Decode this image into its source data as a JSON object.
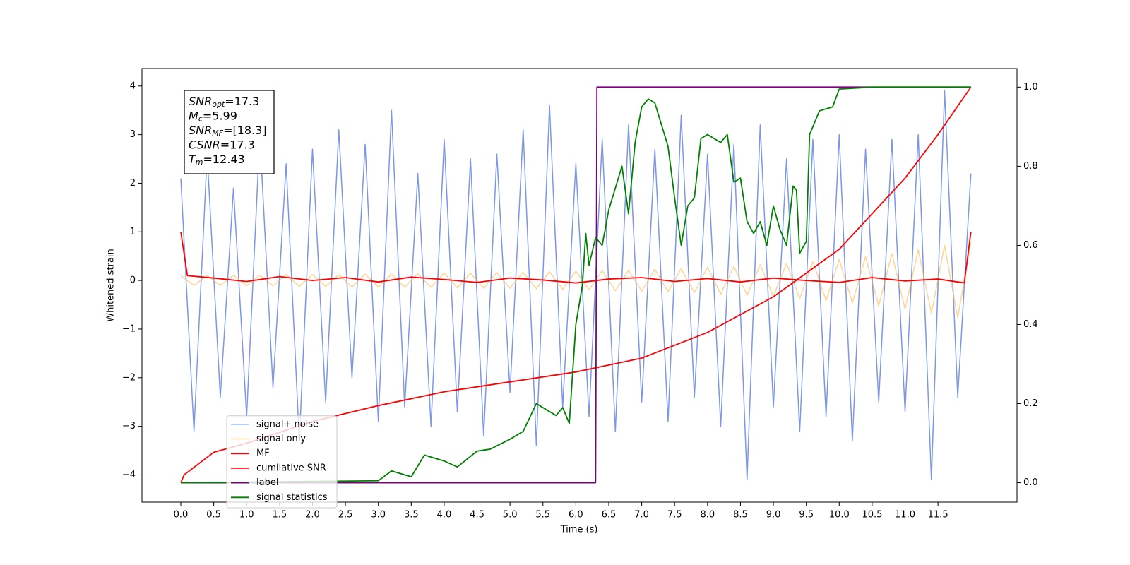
{
  "chart_data": {
    "type": "line",
    "x_label": "Time (s)",
    "y_label": "Whitened strain",
    "xlim": [
      -0.59,
      12.7
    ],
    "ylim": [
      -4.56,
      4.36
    ],
    "y2lim": [
      -0.049,
      1.047
    ],
    "xticks": [
      {
        "value": 0,
        "label": "0.0"
      },
      0.5,
      {
        "value": 1,
        "label": "1.0"
      },
      1.5,
      {
        "value": 2,
        "label": "2.0"
      },
      2.5,
      {
        "value": 3,
        "label": "3.0"
      },
      3.5,
      {
        "value": 4,
        "label": "4.0"
      },
      4.5,
      {
        "value": 5,
        "label": "5.0"
      },
      5.5,
      {
        "value": 6,
        "label": "6.0"
      },
      6.5,
      {
        "value": 7,
        "label": "7.0"
      },
      7.5,
      {
        "value": 8,
        "label": "8.0"
      },
      8.5,
      {
        "value": 9,
        "label": "9.0"
      },
      9.5,
      {
        "value": 10,
        "label": "10.0"
      },
      10.5,
      {
        "value": 11,
        "label": "11.0"
      },
      11.5
    ],
    "yticks": [
      {
        "value": -4,
        "label": "−4"
      },
      {
        "value": -3,
        "label": "−3"
      },
      {
        "value": -2,
        "label": "−2"
      },
      {
        "value": -1,
        "label": "−1"
      },
      0,
      1,
      2,
      3,
      4
    ],
    "y2ticks": [
      {
        "value": 0,
        "label": "0.0"
      },
      0.2,
      0.4,
      0.6,
      0.8,
      {
        "value": 1,
        "label": "1.0"
      }
    ],
    "legend_loc": "lower left",
    "annotation_lines": [
      {
        "name": "SNR",
        "sub": "opt",
        "value": "=17.3"
      },
      {
        "name": "M",
        "sub": "c",
        "value": "=5.99"
      },
      {
        "name": "SNR",
        "sub": "MF",
        "value": "=[18.3]"
      },
      {
        "name": "CSNR",
        "value": "=17.3"
      },
      {
        "name": "T",
        "sub": "m",
        "value": "=12.43"
      }
    ],
    "series": [
      {
        "name": "signal+ noise",
        "color": "#6f8ce6",
        "x": [
          0,
          0.2,
          0.4,
          0.6,
          0.8,
          1,
          1.2,
          1.4,
          1.6,
          1.8,
          2,
          2.2,
          2.4,
          2.6,
          2.8,
          3,
          3.2,
          3.4,
          3.6,
          3.8,
          4,
          4.2,
          4.4,
          4.6,
          4.8,
          5,
          5.2,
          5.4,
          5.6,
          5.8,
          6,
          6.2,
          6.4,
          6.6,
          6.8,
          7,
          7.2,
          7.4,
          7.6,
          7.8,
          8,
          8.2,
          8.4,
          8.6,
          8.8,
          9,
          9.2,
          9.4,
          9.6,
          9.8,
          10,
          10.2,
          10.4,
          10.6,
          10.8,
          11,
          11.2,
          11.4,
          11.6,
          11.8,
          12
        ],
        "values": [
          2.1,
          -3.1,
          2.6,
          -2.4,
          1.9,
          -2.8,
          3.0,
          -2.2,
          2.4,
          -3.3,
          2.7,
          -2.5,
          3.1,
          -2.0,
          2.8,
          -2.9,
          3.5,
          -2.6,
          2.2,
          -3.0,
          2.9,
          -2.7,
          2.5,
          -3.2,
          2.6,
          -2.3,
          3.1,
          -3.4,
          3.6,
          -2.6,
          2.4,
          -2.8,
          2.9,
          -3.1,
          3.2,
          -2.5,
          2.7,
          -2.9,
          3.4,
          -2.4,
          2.6,
          -3.0,
          2.8,
          -4.1,
          3.2,
          -2.6,
          2.5,
          -3.1,
          2.9,
          -2.8,
          3.0,
          -3.3,
          2.7,
          -2.5,
          2.9,
          -2.7,
          3.0,
          -4.1,
          3.9,
          -2.4,
          2.2
        ]
      },
      {
        "name": "signal only",
        "color": "#ffb84d",
        "x": [
          0,
          0.2,
          0.4,
          0.6,
          0.8,
          1,
          1.2,
          1.4,
          1.6,
          1.8,
          2,
          2.2,
          2.4,
          2.6,
          2.8,
          3,
          3.2,
          3.4,
          3.6,
          3.8,
          4,
          4.2,
          4.4,
          4.6,
          4.8,
          5,
          5.2,
          5.4,
          5.6,
          5.8,
          6,
          6.2,
          6.4,
          6.6,
          6.8,
          7,
          7.2,
          7.4,
          7.6,
          7.8,
          8,
          8.2,
          8.4,
          8.6,
          8.8,
          9,
          9.2,
          9.4,
          9.6,
          9.8,
          10,
          10.2,
          10.4,
          10.6,
          10.8,
          11,
          11.2,
          11.4,
          11.6,
          11.8,
          12
        ],
        "values": [
          0.1,
          -0.1,
          0.1,
          -0.1,
          0.11,
          -0.11,
          0.11,
          -0.11,
          0.12,
          -0.12,
          0.12,
          -0.12,
          0.12,
          -0.13,
          0.13,
          -0.13,
          0.13,
          -0.14,
          0.14,
          -0.14,
          0.15,
          -0.15,
          0.15,
          -0.16,
          0.16,
          -0.16,
          0.17,
          -0.17,
          0.18,
          -0.18,
          0.19,
          -0.19,
          0.2,
          -0.21,
          0.21,
          -0.22,
          0.23,
          -0.23,
          0.24,
          -0.25,
          0.27,
          -0.28,
          0.29,
          -0.3,
          0.32,
          -0.33,
          0.35,
          -0.37,
          0.39,
          -0.41,
          0.43,
          -0.46,
          0.49,
          -0.52,
          0.55,
          -0.59,
          0.63,
          -0.67,
          0.72,
          -0.77,
          0.8
        ]
      },
      {
        "name": "MF",
        "color": "#ff0000",
        "x": [
          0,
          0.1,
          0.5,
          1,
          1.5,
          2,
          2.5,
          3,
          3.5,
          4,
          4.5,
          5,
          5.5,
          6,
          6.5,
          7,
          7.5,
          8,
          8.5,
          9,
          9.5,
          10,
          10.5,
          11,
          11.5,
          11.9,
          12.0
        ],
        "values": [
          1.0,
          0.1,
          0.05,
          -0.02,
          0.08,
          0.0,
          0.06,
          -0.03,
          0.07,
          0.02,
          -0.04,
          0.05,
          0.01,
          -0.05,
          0.03,
          0.06,
          -0.02,
          0.04,
          -0.03,
          0.05,
          0.0,
          -0.04,
          0.06,
          -0.01,
          0.03,
          -0.05,
          1.0
        ]
      },
      {
        "name": "cumilative SNR",
        "color": "#ff0000",
        "axis": "y2",
        "x": [
          0,
          0.05,
          0.5,
          1,
          2,
          3,
          4,
          5,
          6,
          7,
          8,
          9,
          10,
          11,
          11.5,
          12.0
        ],
        "values": [
          0,
          0.02,
          0.077,
          0.1,
          0.155,
          0.195,
          0.23,
          0.255,
          0.28,
          0.315,
          0.38,
          0.47,
          0.59,
          0.77,
          0.88,
          1.0
        ]
      },
      {
        "name": "label",
        "color": "#800080",
        "axis": "y2",
        "x": [
          0,
          6.3,
          6.32,
          12.0
        ],
        "values": [
          0,
          0,
          1,
          1
        ]
      },
      {
        "name": "signal statistics",
        "color": "#008000",
        "axis": "y2",
        "x": [
          0,
          3,
          3.2,
          3.5,
          3.7,
          4,
          4.2,
          4.5,
          4.7,
          5,
          5.2,
          5.4,
          5.7,
          5.8,
          5.9,
          6.0,
          6.1,
          6.15,
          6.2,
          6.3,
          6.4,
          6.5,
          6.7,
          6.8,
          6.9,
          7.0,
          7.1,
          7.2,
          7.4,
          7.5,
          7.6,
          7.7,
          7.8,
          7.9,
          8.0,
          8.2,
          8.3,
          8.4,
          8.5,
          8.6,
          8.7,
          8.8,
          8.9,
          9.0,
          9.1,
          9.2,
          9.3,
          9.35,
          9.4,
          9.5,
          9.55,
          9.7,
          9.9,
          10.0,
          10.5,
          12.0
        ],
        "values": [
          0,
          0.005,
          0.03,
          0.015,
          0.07,
          0.055,
          0.04,
          0.08,
          0.085,
          0.11,
          0.13,
          0.2,
          0.17,
          0.19,
          0.15,
          0.4,
          0.5,
          0.63,
          0.55,
          0.62,
          0.6,
          0.69,
          0.8,
          0.68,
          0.86,
          0.95,
          0.97,
          0.96,
          0.85,
          0.72,
          0.6,
          0.7,
          0.72,
          0.87,
          0.88,
          0.86,
          0.88,
          0.76,
          0.77,
          0.66,
          0.63,
          0.66,
          0.6,
          0.7,
          0.64,
          0.6,
          0.75,
          0.74,
          0.58,
          0.61,
          0.88,
          0.94,
          0.95,
          0.995,
          1.0,
          1.0
        ]
      }
    ]
  }
}
